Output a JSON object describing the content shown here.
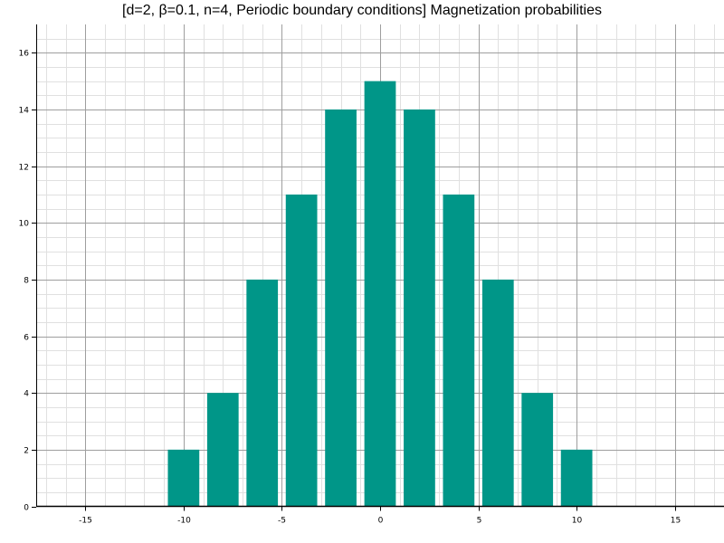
{
  "chart_data": {
    "type": "bar",
    "title": "[d=2, β=0.1, n=4, Periodic boundary conditions] Magnetization probabilities",
    "xlabel": "",
    "ylabel": "",
    "x": [
      -16,
      -14,
      -12,
      -10,
      -8,
      -6,
      -4,
      -2,
      0,
      2,
      4,
      6,
      8,
      10,
      12,
      14,
      16
    ],
    "values": [
      0,
      0,
      0,
      2,
      4,
      8,
      11,
      14,
      15,
      14,
      11,
      8,
      4,
      2,
      0,
      0,
      0
    ],
    "xlim": [
      -17.5,
      17.5
    ],
    "ylim": [
      0,
      17
    ],
    "x_ticks": [
      -15,
      -10,
      -5,
      0,
      5,
      10,
      15
    ],
    "y_ticks": [
      0,
      2,
      4,
      6,
      8,
      10,
      12,
      14,
      16
    ],
    "x_tick_labels": [
      "-15",
      "-10",
      "-5",
      "0",
      "5",
      "10",
      "15"
    ],
    "y_tick_labels": [
      "0",
      "2",
      "4",
      "6",
      "8",
      "10",
      "12",
      "14",
      "16"
    ],
    "grid": true,
    "bar_color": "#009688",
    "grid_major_color": "#9e9e9e",
    "grid_minor_color": "#e0e0e0"
  }
}
